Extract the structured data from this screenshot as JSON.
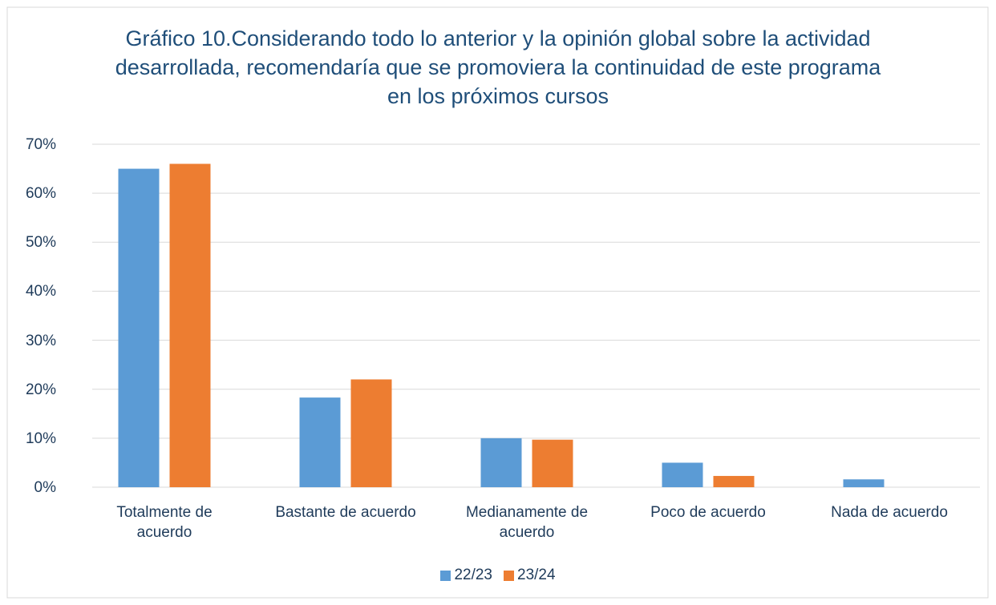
{
  "chart_data": {
    "type": "bar",
    "title": "Gráfico 10.Considerando todo lo anterior y la opinión global sobre la actividad desarrollada, recomendaría que se promoviera la continuidad de este programa en los próximos cursos",
    "categories": [
      "Totalmente de acuerdo",
      "Bastante de acuerdo",
      "Medianamente de acuerdo",
      "Poco de acuerdo",
      "Nada de acuerdo"
    ],
    "series": [
      {
        "name": "22/23",
        "color": "#5b9bd5",
        "values": [
          65,
          18.3,
          10,
          5,
          1.6
        ]
      },
      {
        "name": "23/24",
        "color": "#ed7d31",
        "values": [
          66,
          22,
          9.7,
          2.3,
          0
        ]
      }
    ],
    "ylim": [
      0,
      70
    ],
    "yticks": [
      {
        "value": 0,
        "label": "0%"
      },
      {
        "value": 10,
        "label": "10%"
      },
      {
        "value": 20,
        "label": "20%"
      },
      {
        "value": 30,
        "label": "30%"
      },
      {
        "value": 40,
        "label": "40%"
      },
      {
        "value": 50,
        "label": "50%"
      },
      {
        "value": 60,
        "label": "60%"
      },
      {
        "value": 70,
        "label": "70%"
      }
    ],
    "grid": true,
    "legend": "bottom"
  }
}
